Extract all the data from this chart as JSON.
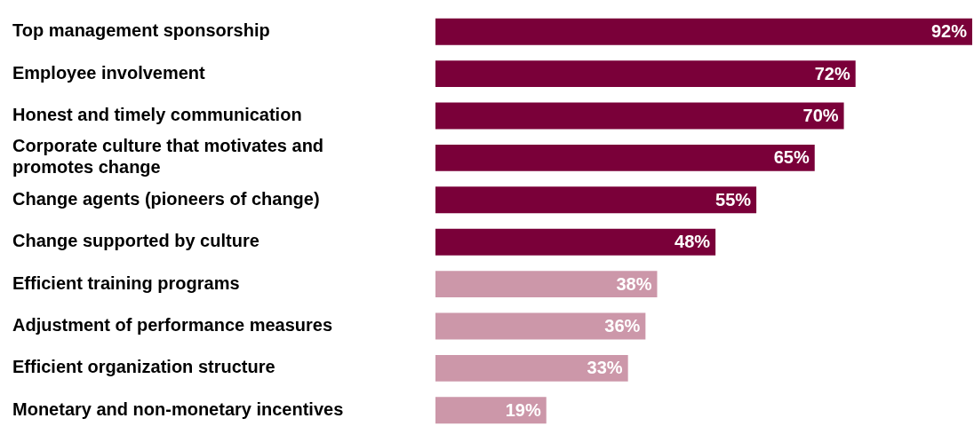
{
  "chart_data": {
    "type": "bar",
    "orientation": "horizontal",
    "categories": [
      "Top management sponsorship",
      "Employee involvement",
      "Honest and timely communication",
      "Corporate culture that motivates and promotes change",
      "Change agents (pioneers of change)",
      "Change supported by culture",
      "Efficient training programs",
      "Adjustment of performance measures",
      "Efficient organization structure",
      "Monetary and non-monetary incentives"
    ],
    "values": [
      92,
      72,
      70,
      65,
      55,
      48,
      38,
      36,
      33,
      19
    ],
    "value_labels": [
      "92%",
      "72%",
      "70%",
      "65%",
      "55%",
      "48%",
      "38%",
      "36%",
      "33%",
      "19%"
    ],
    "colors": [
      "#7a0039",
      "#7a0039",
      "#7a0039",
      "#7a0039",
      "#7a0039",
      "#7a0039",
      "#cc97a9",
      "#cc97a9",
      "#cc97a9",
      "#cc97a9"
    ],
    "legend": false
  }
}
